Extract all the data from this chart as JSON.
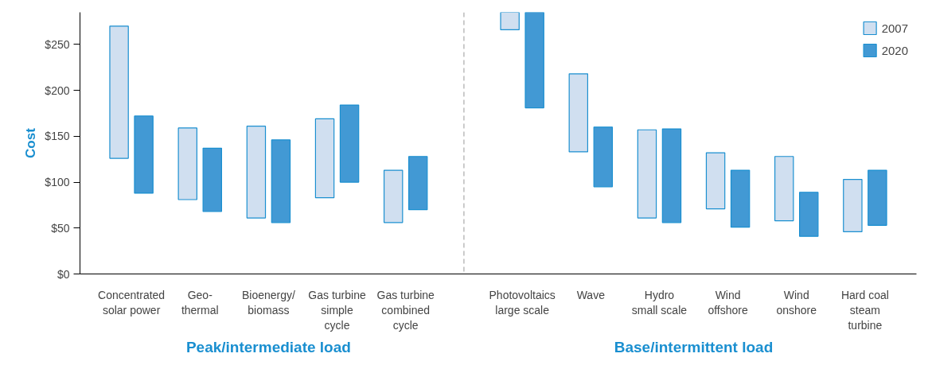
{
  "chart_data": {
    "type": "bar",
    "ylabel": "Cost",
    "categories": [
      "Concentrated\nsolar power",
      "Geo-\nthermal",
      "Bioenergy/\nbiomass",
      "Gas turbine\nsimple\ncycle",
      "Gas turbine\ncombined\ncycle",
      "Photovoltaics\nlarge scale",
      "Wave",
      "Hydro\nsmall scale",
      "Wind\noffshore",
      "Wind\nonshore",
      "Hard coal\nsteam\nturbine"
    ],
    "series": [
      {
        "name": "2007",
        "color": "#d0dff0",
        "base": [
          126,
          81,
          61,
          83,
          56,
          266,
          133,
          61,
          71,
          58,
          46
        ],
        "values": [
          144,
          78,
          100,
          86,
          57,
          19,
          85,
          96,
          61,
          70,
          57
        ]
      },
      {
        "name": "2020",
        "color": "#4299d4",
        "base": [
          88,
          68,
          56,
          100,
          70,
          181,
          95,
          56,
          51,
          41,
          53
        ],
        "values": [
          84,
          69,
          90,
          84,
          58,
          104,
          65,
          102,
          62,
          48,
          60
        ]
      }
    ],
    "ylim": [
      0,
      285
    ],
    "yticks": [
      {
        "value": 0,
        "label": "$0"
      },
      {
        "value": 50,
        "label": "$50"
      },
      {
        "value": 100,
        "label": "$100"
      },
      {
        "value": 150,
        "label": "$150"
      },
      {
        "value": 200,
        "label": "$200"
      },
      {
        "value": 250,
        "label": "$250"
      }
    ],
    "annotations": [
      "Peak/intermediate load",
      "Base/intermittent load"
    ],
    "grid": false,
    "legend": "top right"
  }
}
